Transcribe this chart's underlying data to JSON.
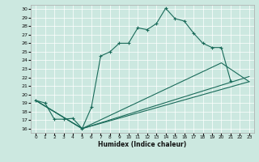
{
  "xlabel": "Humidex (Indice chaleur)",
  "background_color": "#cce8e0",
  "line_color": "#1a6b5a",
  "xlim": [
    -0.5,
    23.5
  ],
  "ylim": [
    15.5,
    30.5
  ],
  "xticks": [
    0,
    1,
    2,
    3,
    4,
    5,
    6,
    7,
    8,
    9,
    10,
    11,
    12,
    13,
    14,
    15,
    16,
    17,
    18,
    19,
    20,
    21,
    22,
    23
  ],
  "yticks": [
    16,
    17,
    18,
    19,
    20,
    21,
    22,
    23,
    24,
    25,
    26,
    27,
    28,
    29,
    30
  ],
  "line1_x": [
    0,
    1,
    2,
    3,
    4,
    5,
    6,
    7,
    8,
    9,
    10,
    11,
    12,
    13,
    14,
    15,
    16,
    17,
    18,
    19,
    20,
    21
  ],
  "line1_y": [
    19.3,
    19.0,
    17.1,
    17.1,
    17.2,
    16.0,
    18.5,
    24.5,
    25.0,
    26.0,
    26.0,
    27.8,
    27.6,
    28.3,
    30.1,
    28.9,
    28.6,
    27.2,
    26.0,
    25.5,
    25.5,
    21.6
  ],
  "line2_x": [
    0,
    5,
    23
  ],
  "line2_y": [
    19.3,
    16.0,
    21.5
  ],
  "line3_x": [
    0,
    5,
    20,
    23
  ],
  "line3_y": [
    19.3,
    16.0,
    23.7,
    21.5
  ],
  "line4_x": [
    0,
    5,
    23
  ],
  "line4_y": [
    19.3,
    16.0,
    22.1
  ]
}
